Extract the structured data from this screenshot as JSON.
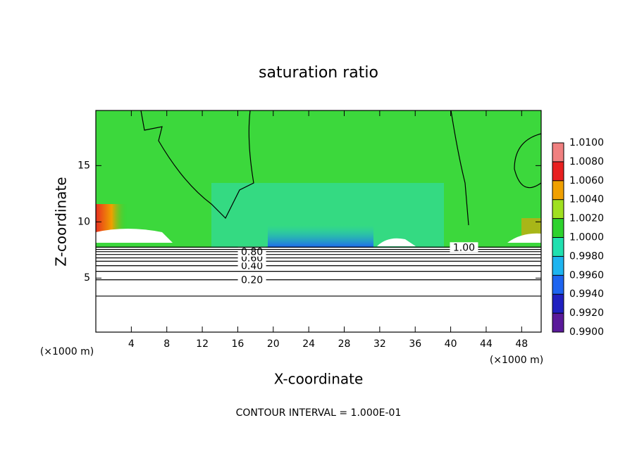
{
  "chart_data": {
    "type": "contour",
    "title": "saturation ratio",
    "x_label": "X-coordinate",
    "y_label": "Z-coordinate",
    "x_unit_left": "(×1000 m)",
    "x_unit_right": "(×1000 m)",
    "footer": "CONTOUR INTERVAL = 1.000E-01",
    "xlim": [
      0,
      50.2
    ],
    "xticks": [
      4,
      8,
      12,
      16,
      20,
      24,
      28,
      32,
      36,
      40,
      44,
      48
    ],
    "ylim": [
      0.2,
      19.9
    ],
    "yticks": [
      5,
      10,
      15
    ],
    "contours": [
      {
        "value": 0.1,
        "z": 3.4
      },
      {
        "value": 0.2,
        "z": 4.85,
        "label": "0.20"
      },
      {
        "value": 0.3,
        "z": 5.6
      },
      {
        "value": 0.4,
        "z": 6.1,
        "label": "0.40"
      },
      {
        "value": 0.5,
        "z": 6.5
      },
      {
        "value": 0.6,
        "z": 6.8,
        "label": "0.60"
      },
      {
        "value": 0.7,
        "z": 7.1
      },
      {
        "value": 0.8,
        "z": 7.35,
        "label": "0.80"
      },
      {
        "value": 0.9,
        "z": 7.55
      },
      {
        "value": 1.0,
        "z": 7.75,
        "label": "1.00"
      }
    ],
    "colorbar": {
      "lim": [
        0.99,
        1.01
      ],
      "ticks": [
        {
          "value": 0.99,
          "label": "0.9900"
        },
        {
          "value": 0.992,
          "label": "0.9920"
        },
        {
          "value": 0.994,
          "label": "0.9940"
        },
        {
          "value": 0.996,
          "label": "0.9960"
        },
        {
          "value": 0.998,
          "label": "0.9980"
        },
        {
          "value": 1.0,
          "label": "1.0000"
        },
        {
          "value": 1.002,
          "label": "1.0020"
        },
        {
          "value": 1.004,
          "label": "1.0040"
        },
        {
          "value": 1.006,
          "label": "1.0060"
        },
        {
          "value": 1.008,
          "label": "1.0080"
        },
        {
          "value": 1.01,
          "label": "1.0100"
        }
      ],
      "colors": [
        "#5a1a9a",
        "#2020c0",
        "#1e64f0",
        "#1eb4f0",
        "#20e0b0",
        "#2ed22e",
        "#a0e020",
        "#f0a000",
        "#e82020",
        "#f08080"
      ]
    }
  }
}
